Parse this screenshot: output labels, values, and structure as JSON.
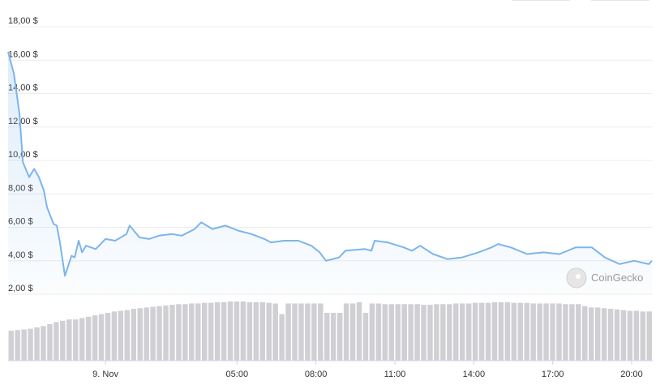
{
  "chart_data": {
    "type": "line",
    "color": "#7cb5ec",
    "x": [
      -3.7,
      -3.48,
      -3.27,
      -3.14,
      -2.9,
      -2.71,
      -2.53,
      -2.34,
      -2.22,
      -1.97,
      -1.85,
      -1.73,
      -1.54,
      -1.29,
      -1.17,
      -1.02,
      -0.89,
      -0.74,
      -0.37,
      0,
      0.37,
      0.8,
      0.92,
      1.29,
      1.66,
      2.03,
      2.53,
      2.9,
      3.39,
      3.64,
      4.07,
      4.56,
      5.05,
      5.55,
      6.04,
      6.29,
      6.78,
      7.33,
      7.83,
      8.14,
      8.38,
      8.88,
      9.12,
      9.86,
      10.11,
      10.23,
      10.72,
      11.34,
      11.65,
      11.96,
      12.45,
      13.0,
      13.56,
      14.18,
      14.67,
      14.92,
      15.41,
      16.02,
      16.64,
      17.26,
      17.87,
      18.49,
      18.98,
      19.54,
      20.09,
      20.65,
      20.77
    ],
    "values": [
      16.5,
      15.2,
      12.8,
      9.9,
      9.0,
      9.5,
      9.0,
      8.2,
      7.2,
      6.2,
      6.1,
      5.1,
      3.1,
      4.3,
      4.2,
      5.2,
      4.5,
      4.9,
      4.7,
      5.3,
      5.2,
      5.6,
      6.1,
      5.4,
      5.3,
      5.5,
      5.6,
      5.5,
      5.9,
      6.3,
      5.9,
      6.1,
      5.8,
      5.6,
      5.3,
      5.1,
      5.2,
      5.2,
      4.9,
      4.5,
      4.0,
      4.2,
      4.6,
      4.7,
      4.6,
      5.2,
      5.1,
      4.8,
      4.6,
      4.9,
      4.4,
      4.1,
      4.2,
      4.5,
      4.8,
      5.0,
      4.8,
      4.4,
      4.5,
      4.4,
      4.8,
      4.8,
      4.2,
      3.8,
      4.0,
      3.8,
      4.0
    ],
    "xlim": [
      -3.7,
      20.8
    ],
    "xticks": [
      {
        "value": 0,
        "label": "9. Nov"
      },
      {
        "value": 5,
        "label": "05:00"
      },
      {
        "value": 8,
        "label": "08:00"
      },
      {
        "value": 11,
        "label": "11:00"
      },
      {
        "value": 14,
        "label": "14:00"
      },
      {
        "value": 17,
        "label": "17:00"
      },
      {
        "value": 20,
        "label": "20:00"
      }
    ],
    "ylim": [
      2,
      18
    ],
    "yticks": [
      {
        "value": 18,
        "label": "18,00 $"
      },
      {
        "value": 16,
        "label": "16,00 $"
      },
      {
        "value": 14,
        "label": "14,00 $"
      },
      {
        "value": 12,
        "label": "12,00 $"
      },
      {
        "value": 10,
        "label": "10,00 $"
      },
      {
        "value": 8,
        "label": "8,00 $"
      },
      {
        "value": 6,
        "label": "6,00 $"
      },
      {
        "value": 4,
        "label": "4,00 $"
      },
      {
        "value": 2,
        "label": "2,00 $"
      }
    ],
    "grid": true,
    "watermark": "CoinGecko",
    "volume": {
      "color": "#d0d0d4",
      "y2lim": [
        0,
        100
      ],
      "values": [
        45,
        46,
        47,
        48,
        50,
        52,
        55,
        58,
        60,
        62,
        62,
        64,
        66,
        68,
        70,
        72,
        74,
        75,
        76,
        78,
        79,
        80,
        81,
        82,
        83,
        84,
        85,
        85,
        86,
        86,
        87,
        87,
        88,
        88,
        89,
        89,
        89,
        88,
        88,
        88,
        87,
        86,
        70,
        86,
        86,
        86,
        86,
        86,
        86,
        72,
        72,
        72,
        86,
        86,
        88,
        72,
        86,
        86,
        85,
        85,
        85,
        85,
        85,
        85,
        84,
        84,
        85,
        85,
        85,
        86,
        86,
        86,
        87,
        87,
        87,
        88,
        88,
        88,
        87,
        87,
        87,
        86,
        86,
        86,
        86,
        86,
        85,
        85,
        85,
        82,
        80,
        80,
        79,
        78,
        77,
        76,
        75,
        75,
        74,
        74
      ]
    }
  }
}
